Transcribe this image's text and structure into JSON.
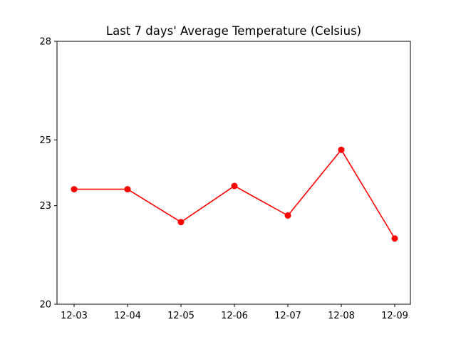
{
  "chart_data": {
    "type": "line",
    "title": "Last 7 days' Average Temperature (Celsius)",
    "xlabel": "",
    "ylabel": "",
    "categories": [
      "12-03",
      "12-04",
      "12-05",
      "12-06",
      "12-07",
      "12-08",
      "12-09"
    ],
    "series": [
      {
        "values": [
          23.5,
          23.5,
          22.5,
          23.6,
          22.7,
          24.7,
          22.0
        ],
        "color": "#ff0000",
        "marker": "circle"
      }
    ],
    "ylim": [
      20,
      28
    ],
    "yticks": [
      20,
      23,
      25,
      28
    ],
    "ytick_labels": [
      "20",
      "23",
      "25",
      "28"
    ],
    "grid": false,
    "legend": "none"
  }
}
